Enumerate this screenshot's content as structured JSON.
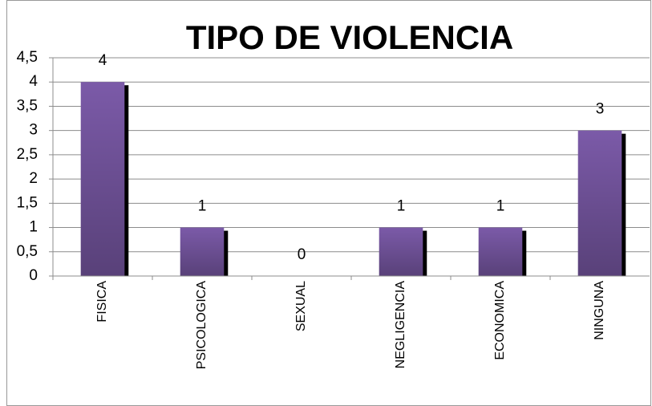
{
  "chart_data": {
    "type": "bar",
    "title": "TIPO DE VIOLENCIA",
    "categories": [
      "FISICA",
      "PSICOLOGICA",
      "SEXUAL",
      "NEGLIGENCIA",
      "ECONOMICA",
      "NINGUNA"
    ],
    "values": [
      4,
      1,
      0,
      1,
      1,
      3
    ],
    "color": "#7b5aa8",
    "ylim": [
      0,
      4.5
    ],
    "yticks": [
      0,
      {
        "value": 0.5,
        "label": "0,5"
      },
      1,
      {
        "value": 1.5,
        "label": "1,5"
      },
      2,
      {
        "value": 2.5,
        "label": "2,5"
      },
      3,
      {
        "value": 3.5,
        "label": "3,5"
      },
      4,
      {
        "value": 4.5,
        "label": "4,5"
      }
    ],
    "grid": true
  }
}
